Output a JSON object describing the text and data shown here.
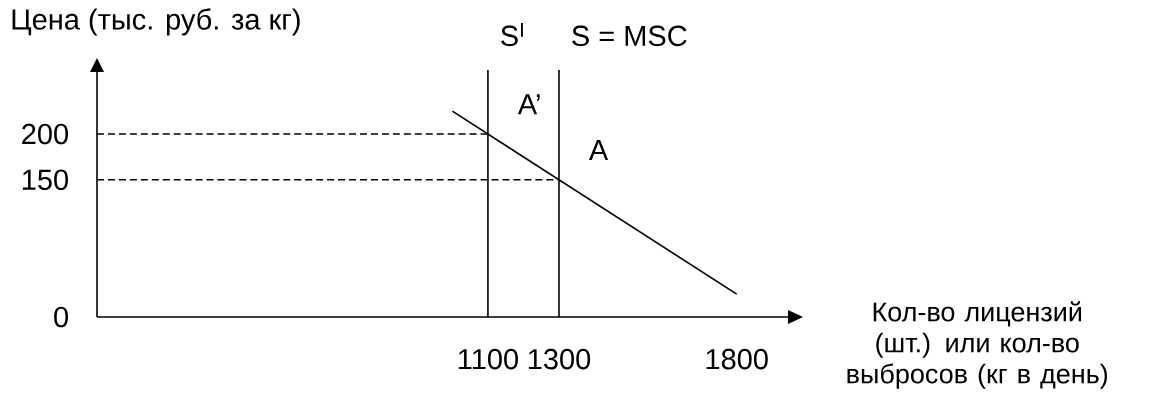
{
  "chart_data": {
    "type": "line",
    "ylabel": "Цена (тыс. руб. за кг)",
    "xlabel": "Кол-во лицензий (шт.) или кол-во выбросов (кг в день)",
    "xlim": [
      0,
      1950
    ],
    "ylim": [
      0,
      270
    ],
    "xticks": [
      1100,
      1300,
      1800
    ],
    "yticks": [
      0,
      150,
      200
    ],
    "marker": "none",
    "series": [
      {
        "color": "#000000",
        "line_style": "solid",
        "x": [
          1000,
          1800
        ],
        "values": [
          225,
          25
        ]
      },
      {
        "color": "#000000",
        "line_style": "dashed",
        "x": [
          0,
          1100
        ],
        "values": [
          200,
          200
        ]
      },
      {
        "color": "#000000",
        "line_style": "dashed",
        "x": [
          0,
          1300
        ],
        "values": [
          150,
          150
        ]
      }
    ],
    "ref_lines": [
      {
        "axis": "x",
        "value": 1100,
        "label": "S$^{I}$",
        "line_style": "solid"
      },
      {
        "axis": "x",
        "value": 1300,
        "label": "S = MSC",
        "line_style": "solid"
      }
    ],
    "annotations": [
      {
        "text": "A’",
        "x": 1100,
        "y": 200
      },
      {
        "text": "A",
        "x": 1300,
        "y": 150
      }
    ]
  }
}
